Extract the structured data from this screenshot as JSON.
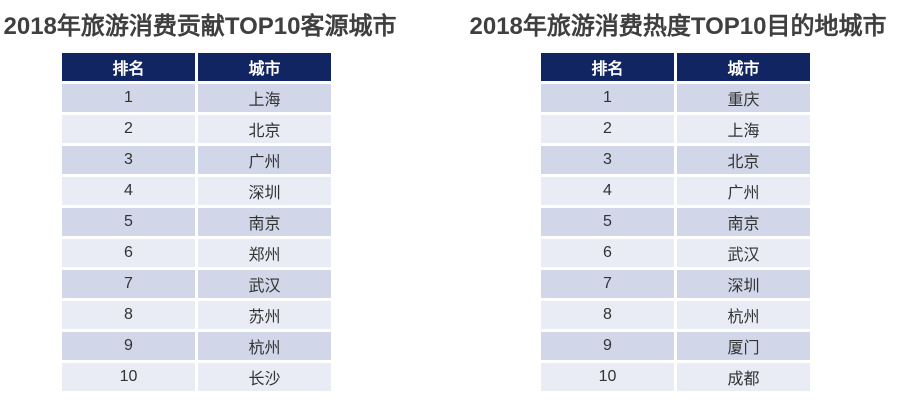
{
  "colors": {
    "background": "#FFFFFF",
    "title_text": "#3F3F3F",
    "header_bg": "#112563",
    "header_text": "#FFFFFF",
    "row_odd_bg": "#D1D7E9",
    "row_even_bg": "#E9ECF5",
    "cell_text": "#333333"
  },
  "chart_data": [
    {
      "type": "table",
      "title": "2018年旅游消费贡献TOP10客源城市",
      "columns": [
        "排名",
        "城市"
      ],
      "rows": [
        {
          "rank": "1",
          "city": "上海"
        },
        {
          "rank": "2",
          "city": "北京"
        },
        {
          "rank": "3",
          "city": "广州"
        },
        {
          "rank": "4",
          "city": "深圳"
        },
        {
          "rank": "5",
          "city": "南京"
        },
        {
          "rank": "6",
          "city": "郑州"
        },
        {
          "rank": "7",
          "city": "武汉"
        },
        {
          "rank": "8",
          "city": "苏州"
        },
        {
          "rank": "9",
          "city": "杭州"
        },
        {
          "rank": "10",
          "city": "长沙"
        }
      ]
    },
    {
      "type": "table",
      "title": "2018年旅游消费热度TOP10目的地城市",
      "columns": [
        "排名",
        "城市"
      ],
      "rows": [
        {
          "rank": "1",
          "city": "重庆"
        },
        {
          "rank": "2",
          "city": "上海"
        },
        {
          "rank": "3",
          "city": "北京"
        },
        {
          "rank": "4",
          "city": "广州"
        },
        {
          "rank": "5",
          "city": "南京"
        },
        {
          "rank": "6",
          "city": "武汉"
        },
        {
          "rank": "7",
          "city": "深圳"
        },
        {
          "rank": "8",
          "city": "杭州"
        },
        {
          "rank": "9",
          "city": "厦门"
        },
        {
          "rank": "10",
          "city": "成都"
        }
      ]
    }
  ]
}
